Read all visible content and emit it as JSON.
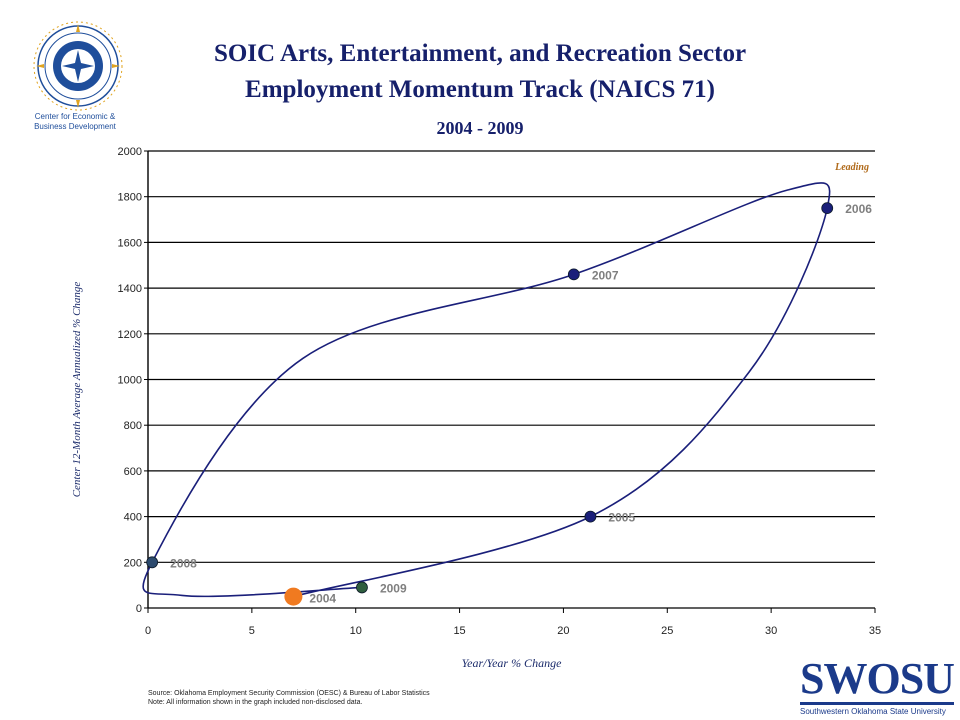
{
  "header": {
    "title_line1": "SOIC Arts, Entertainment, and Recreation Sector",
    "title_line2": "Employment Momentum Track (NAICS 71)",
    "subtitle": "2004 - 2009",
    "org_caption_line1": "Center for Economic &",
    "org_caption_line2": "Business Development"
  },
  "footer": {
    "source": "Source: Oklahoma Employment Security Commission (OESC) & Bureau of Labor Statistics",
    "note": "Note: All information shown in the graph included non-disclosed data."
  },
  "brand": {
    "name": "SWOSU",
    "full_name": "Southwestern Oklahoma State University",
    "color": "#1b3a8a"
  },
  "chart_data": {
    "type": "scatter",
    "title": "",
    "xlabel": "Year/Year % Change",
    "ylabel": "Center 12-Month Average Annualized % Change",
    "xlim": [
      0,
      35
    ],
    "ylim": [
      0,
      2000
    ],
    "xticks": [
      0,
      5,
      10,
      15,
      20,
      25,
      30,
      35
    ],
    "yticks": [
      0,
      200,
      400,
      600,
      800,
      1000,
      1200,
      1400,
      1600,
      1800,
      2000
    ],
    "grid": "horizontal",
    "background": "#ffffff",
    "quadrant_label": "Leading",
    "quadrant_label_color": "#b06a1a",
    "line_color": "#1a1f7a",
    "points": [
      {
        "label": "2004",
        "x": 7.0,
        "y": 50,
        "color": "#f07a20",
        "current": true
      },
      {
        "label": "2005",
        "x": 21.3,
        "y": 400,
        "color": "#1a1f7a"
      },
      {
        "label": "2006",
        "x": 32.7,
        "y": 1750,
        "color": "#1a1f7a"
      },
      {
        "label": "2007",
        "x": 20.5,
        "y": 1460,
        "color": "#1a1f7a"
      },
      {
        "label": "2008",
        "x": 0.2,
        "y": 200,
        "color": "#2c4a6e"
      },
      {
        "label": "2009",
        "x": 10.3,
        "y": 90,
        "color": "#2f5e3e"
      }
    ]
  }
}
